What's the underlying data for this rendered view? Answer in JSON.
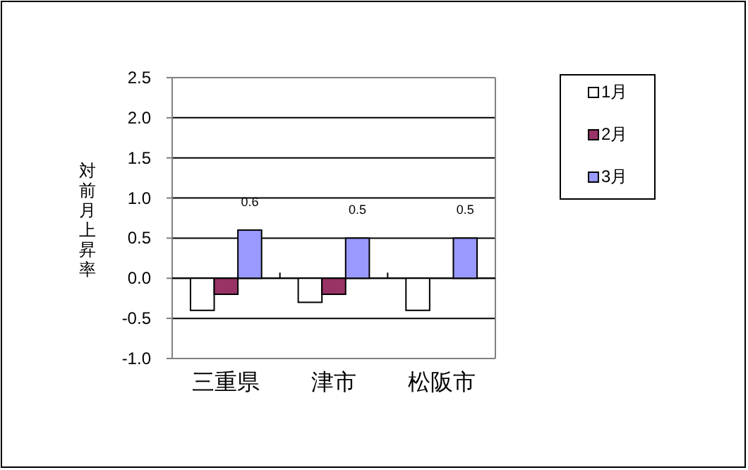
{
  "chart_data": {
    "type": "bar",
    "ylabel": "対前月上昇率",
    "categories": [
      "三重県",
      "津市",
      "松阪市"
    ],
    "series": [
      {
        "name": "1月",
        "color": "#ffffff",
        "values": [
          -0.4,
          -0.3,
          -0.4
        ]
      },
      {
        "name": "2月",
        "color": "#993366",
        "values": [
          -0.2,
          -0.2,
          0.0
        ]
      },
      {
        "name": "3月",
        "color": "#9999ff",
        "values": [
          0.6,
          0.5,
          0.5
        ],
        "value_labels": [
          "0.6",
          "0.5",
          "0.5"
        ]
      }
    ],
    "ylim": [
      -1.0,
      2.5
    ],
    "yticks": [
      {
        "value": -1.0,
        "label": "-1.0"
      },
      {
        "value": -0.5,
        "label": "-0.5"
      },
      {
        "value": 0,
        "label": "0.0"
      },
      {
        "value": 0.5,
        "label": "0.5"
      },
      {
        "value": 1.0,
        "label": "1.0"
      },
      {
        "value": 1.5,
        "label": "1.5"
      },
      {
        "value": 2.0,
        "label": "2.0"
      },
      {
        "value": 2.5,
        "label": "2.5"
      }
    ],
    "grid": "y",
    "legend": "right"
  }
}
